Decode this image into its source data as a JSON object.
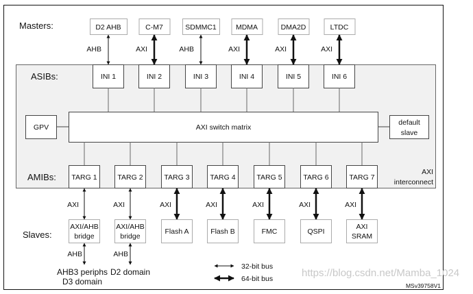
{
  "labels": {
    "masters": "Masters:",
    "asibs": "ASIBs:",
    "amibs": "AMIBs:",
    "slaves": "Slaves:",
    "interconnect_line1": "AXI",
    "interconnect_line2": "interconnect"
  },
  "masters": [
    {
      "name": "D2 AHB",
      "bus": "AHB",
      "ini": "INI 1"
    },
    {
      "name": "C-M7",
      "bus": "AXI",
      "ini": "INI 2"
    },
    {
      "name": "SDMMC1",
      "bus": "AHB",
      "ini": "INI 3"
    },
    {
      "name": "MDMA",
      "bus": "AXI",
      "ini": "INI 4"
    },
    {
      "name": "DMA2D",
      "bus": "AXI",
      "ini": "INI 5"
    },
    {
      "name": "LTDC",
      "bus": "AXI",
      "ini": "INI 6"
    }
  ],
  "matrix": {
    "label": "AXI switch matrix",
    "gpv": "GPV",
    "default_slave_line1": "default",
    "default_slave_line2": "slave"
  },
  "targets": [
    {
      "targ": "TARG 1",
      "bus": "AXI",
      "slave": [
        "AXI/AHB",
        "bridge"
      ],
      "wide": false,
      "down_bus": "AHB",
      "down_text": [
        "AHB3 periphs",
        "D3 domain"
      ]
    },
    {
      "targ": "TARG 2",
      "bus": "AXI",
      "slave": [
        "AXI/AHB",
        "bridge"
      ],
      "wide": false,
      "down_bus": "AHB",
      "down_text": [
        "D2 domain"
      ]
    },
    {
      "targ": "TARG 3",
      "bus": "AXI",
      "slave": [
        "Flash A"
      ],
      "wide": true
    },
    {
      "targ": "TARG 4",
      "bus": "AXI",
      "slave": [
        "Flash B"
      ],
      "wide": true
    },
    {
      "targ": "TARG 5",
      "bus": "AXI",
      "slave": [
        "FMC"
      ],
      "wide": true
    },
    {
      "targ": "TARG 6",
      "bus": "AXI",
      "slave": [
        "QSPI"
      ],
      "wide": true
    },
    {
      "targ": "TARG 7",
      "bus": "AXI",
      "slave": [
        "AXI",
        "SRAM"
      ],
      "wide": true
    }
  ],
  "legend": [
    {
      "label": "32-bit bus"
    },
    {
      "label": "64-bit bus"
    }
  ],
  "figure_id": "MSv39758V1",
  "watermark": "https://blog.csdn.net/Mamba_1024"
}
